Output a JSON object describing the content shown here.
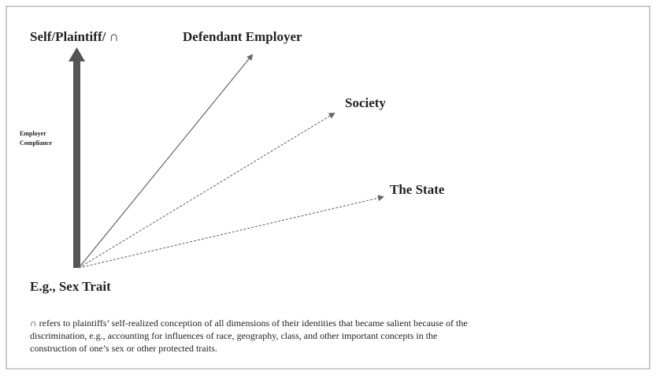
{
  "nodes": [
    {
      "label": "Self/Plaintiff/ ∩"
    },
    {
      "label": "Defendant Employer"
    },
    {
      "label": "Society"
    },
    {
      "label": "The State"
    },
    {
      "label": "E.g., Sex Trait"
    }
  ],
  "axis_label": [
    "Employer",
    "Compliance"
  ],
  "footnote": [
    "∩ refers to plaintiffs’ self-realized conception of all dimensions of their identities that became salient because of the",
    "discrimination, e.g., accounting for influences of race, geography, class, and other important concepts in the",
    "construction of one’s sex or other protected traits."
  ]
}
